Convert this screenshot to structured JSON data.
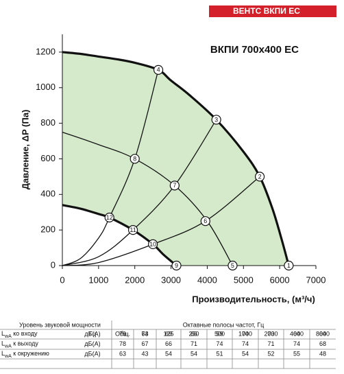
{
  "brand": "ВЕНТС ВКПИ ЕС",
  "chart_data": {
    "type": "line",
    "title": "ВКПИ 700x400 ЕС",
    "y_label": "Давление, ΔP (Па)",
    "x_label": "Производительность, (м³/ч)",
    "xlim": [
      0,
      7000
    ],
    "ylim": [
      0,
      1300
    ],
    "xticks": [
      0,
      1000,
      2000,
      3000,
      4000,
      5000,
      6000,
      7000
    ],
    "yticks": [
      0,
      200,
      400,
      600,
      800,
      1000,
      1200
    ],
    "fill_color": "#d5eacb",
    "series": [
      {
        "color": "#111111",
        "x": [
          0,
          500,
          1000,
          1500,
          2000,
          2650,
          3000,
          3500,
          4250,
          5000,
          5450,
          5800,
          6050,
          6250
        ],
        "values": [
          1200,
          1190,
          1175,
          1160,
          1140,
          1100,
          1040,
          960,
          820,
          640,
          500,
          320,
          150,
          0
        ]
      },
      {
        "color": "#111111",
        "x": [
          0,
          500,
          1000,
          1300,
          1950,
          2500,
          2800,
          3150
        ],
        "values": [
          340,
          320,
          290,
          270,
          200,
          120,
          60,
          0
        ]
      },
      {
        "color": "#111111",
        "x": [
          0,
          1000,
          2000,
          3100,
          4000,
          4700
        ],
        "values": [
          750,
          680,
          600,
          450,
          250,
          0
        ]
      },
      {
        "color": "#111111",
        "x": [
          0,
          500,
          1000,
          1300,
          2000,
          2650
        ],
        "values": [
          0,
          40,
          155,
          270,
          600,
          1100
        ]
      },
      {
        "color": "#111111",
        "x": [
          0,
          1000,
          1950,
          3100,
          4250
        ],
        "values": [
          0,
          50,
          200,
          450,
          820
        ]
      },
      {
        "color": "#111111",
        "x": [
          0,
          1000,
          2500,
          3950,
          5450
        ],
        "values": [
          0,
          17,
          120,
          250,
          500
        ]
      }
    ],
    "points": [
      {
        "label": "1",
        "x": 6250,
        "y": 0
      },
      {
        "label": "2",
        "x": 5450,
        "y": 500
      },
      {
        "label": "3",
        "x": 4250,
        "y": 820
      },
      {
        "label": "4",
        "x": 2650,
        "y": 1100
      },
      {
        "label": "5",
        "x": 4700,
        "y": 0
      },
      {
        "label": "6",
        "x": 3950,
        "y": 250
      },
      {
        "label": "7",
        "x": 3100,
        "y": 450
      },
      {
        "label": "8",
        "x": 2000,
        "y": 600
      },
      {
        "label": "9",
        "x": 3150,
        "y": 0
      },
      {
        "label": "10",
        "x": 2500,
        "y": 120
      },
      {
        "label": "11",
        "x": 1950,
        "y": 200
      },
      {
        "label": "12",
        "x": 1300,
        "y": 270
      }
    ]
  },
  "table": {
    "title": "Уровень звуковой мощности",
    "bands_title": "Октавные полосы частот, Гц",
    "unit_header": "Гц",
    "columns": [
      "Общ.",
      "63",
      "125",
      "250",
      "500",
      "1000",
      "2000",
      "4000",
      "8000"
    ],
    "rows": [
      {
        "symbol": "L",
        "subscript": "wA",
        "text": " ко входу",
        "unit": "дБ(А)",
        "values": [
          79,
          74,
          69,
          66,
          59,
          74,
          73,
          64,
          64
        ]
      },
      {
        "symbol": "L",
        "subscript": "wA",
        "text": " к выходу",
        "unit": "дБ(А)",
        "values": [
          78,
          67,
          66,
          71,
          74,
          74,
          71,
          74,
          68
        ]
      },
      {
        "symbol": "L",
        "subscript": "wA",
        "text": " к окружению",
        "unit": "дБ(А)",
        "values": [
          63,
          43,
          54,
          54,
          51,
          54,
          52,
          55,
          48
        ]
      }
    ]
  }
}
